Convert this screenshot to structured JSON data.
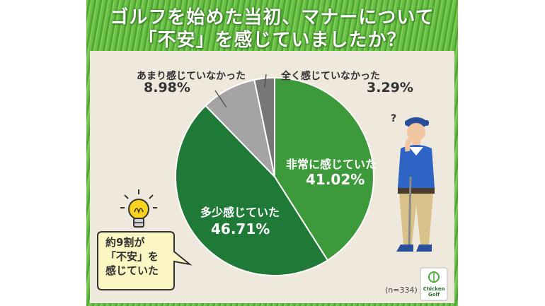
{
  "title": {
    "line1": "ゴルフを始めた当初、マナーについて",
    "line2": "「不安」を感じていましたか？"
  },
  "chart_data": {
    "type": "pie",
    "slices": [
      {
        "label": "非常に感じていた",
        "value": 41.02,
        "display": "41.02%",
        "color": "#3d9a3b"
      },
      {
        "label": "多少感じていた",
        "value": 46.71,
        "display": "46.71%",
        "color": "#1f7a37"
      },
      {
        "label": "あまり感じていなかった",
        "value": 8.98,
        "display": "8.98%",
        "color": "#a4a4a4"
      },
      {
        "label": "全く感じていなかった",
        "value": 3.29,
        "display": "3.29%",
        "color": "#777777"
      }
    ],
    "sample_note": "(n=334)"
  },
  "callout": {
    "line1": "約9割が",
    "line2": "「不安」を",
    "line3": "感じていた"
  },
  "logo": {
    "line1": "Chicken",
    "line2": "Golf"
  },
  "icons": {
    "bulb": "lightbulb-icon",
    "golfer": "golfer-illustration",
    "logo": "chicken-golf-logo"
  }
}
